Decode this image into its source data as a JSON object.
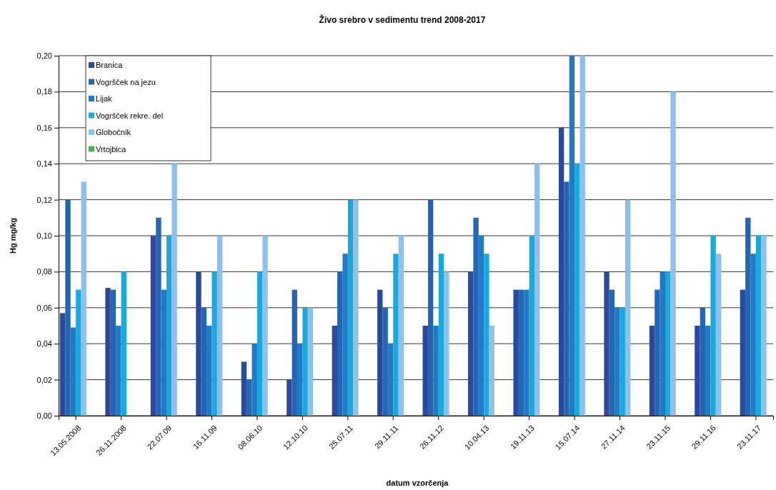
{
  "chart_data": {
    "type": "bar",
    "title": "Živo srebro v sedimentu trend 2008-2017",
    "xlabel": "datum vzorčenja",
    "ylabel": "Hg mg/kg",
    "categories": [
      "13.05.2008",
      "26.11.2008",
      "22.07.09",
      "16.11.09",
      "08.06.10",
      "12.10.10",
      "25.07.11",
      "29.11.11",
      "26.11.12",
      "10.04.13",
      "19.11.13",
      "15.07.14",
      "27.11.14",
      "23.11.15",
      "29.11.16",
      "23.11.17"
    ],
    "series": [
      {
        "name": "Branica",
        "color": "#2a4b9b",
        "values": [
          0.057,
          0.071,
          0.1,
          0.08,
          0.03,
          0.02,
          0.05,
          0.07,
          0.05,
          0.08,
          0.07,
          0.16,
          0.08,
          0.05,
          0.05,
          0.07
        ]
      },
      {
        "name": "Vogršček na jezu",
        "color": "#2565b5",
        "values": [
          0.12,
          0.07,
          0.11,
          0.06,
          0.02,
          0.07,
          0.08,
          0.06,
          0.12,
          0.11,
          0.07,
          0.13,
          0.07,
          0.07,
          0.06,
          0.11
        ]
      },
      {
        "name": "Lijak",
        "color": "#1f7bc4",
        "values": [
          0.049,
          0.05,
          0.07,
          0.05,
          0.04,
          0.04,
          0.09,
          0.04,
          0.05,
          0.1,
          0.07,
          0.2,
          0.06,
          0.08,
          0.05,
          0.09
        ]
      },
      {
        "name": "Vogršček rekre. del",
        "color": "#19a9df",
        "values": [
          0.07,
          0.08,
          0.1,
          0.08,
          0.08,
          0.06,
          0.12,
          0.09,
          0.09,
          0.09,
          0.1,
          0.14,
          0.06,
          0.08,
          0.1,
          0.1
        ]
      },
      {
        "name": "Globočnik",
        "color": "#8fc0ec",
        "values": [
          0.13,
          null,
          0.14,
          0.1,
          0.1,
          0.06,
          0.12,
          0.1,
          0.08,
          0.05,
          0.14,
          0.2,
          0.12,
          0.18,
          0.09,
          0.1
        ]
      },
      {
        "name": "Vrtojbica",
        "color": "#4caf50",
        "values": [
          null,
          null,
          null,
          null,
          null,
          null,
          null,
          null,
          null,
          null,
          null,
          null,
          null,
          null,
          null,
          null
        ]
      }
    ],
    "ylim": [
      0,
      0.2
    ],
    "yticks": [
      {
        "value": 0,
        "label": "0,00"
      },
      {
        "value": 0.02,
        "label": "0,02"
      },
      {
        "value": 0.04,
        "label": "0,04"
      },
      {
        "value": 0.06,
        "label": "0,06"
      },
      {
        "value": 0.08,
        "label": "0,08"
      },
      {
        "value": 0.1,
        "label": "0,10"
      },
      {
        "value": 0.12,
        "label": "0,12"
      },
      {
        "value": 0.14,
        "label": "0,14"
      },
      {
        "value": 0.16,
        "label": "0,16"
      },
      {
        "value": 0.18,
        "label": "0,18"
      },
      {
        "value": 0.2,
        "label": "0,20"
      }
    ],
    "grid": "y",
    "legend": "top left"
  }
}
